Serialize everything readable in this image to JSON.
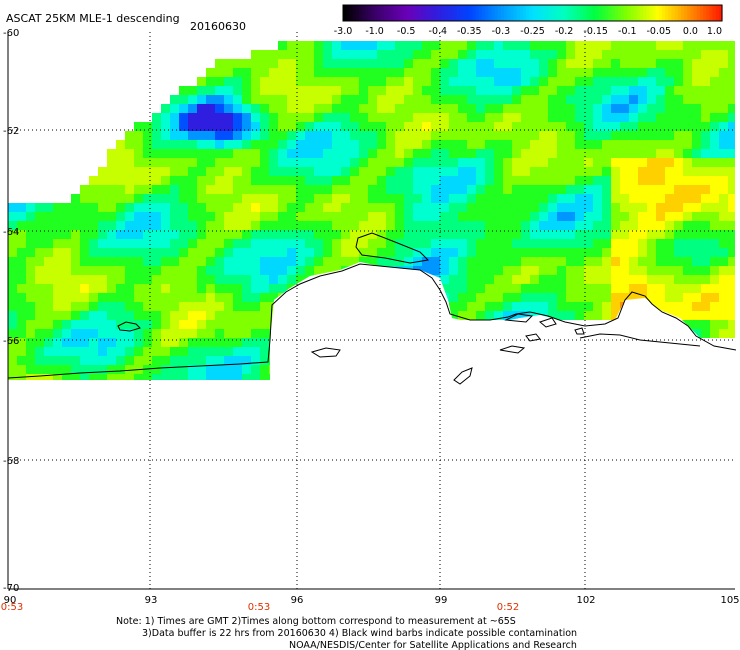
{
  "header": {
    "title": "ASCAT 25KM MLE-1 descending",
    "date": "20160630"
  },
  "colorbar": {
    "labels": [
      "-3.0",
      "-1.0",
      "-0.5",
      "-0.4",
      "-0.35",
      "-0.3",
      "-0.25",
      "-0.2",
      "-0.15",
      "-0.1",
      "-0.05",
      "0.0",
      "1.0"
    ],
    "colors": [
      "#000000",
      "#3b006b",
      "#6a00b8",
      "#2f1ee0",
      "#0044ff",
      "#0096ff",
      "#00e0ff",
      "#00ffc0",
      "#00ff40",
      "#80ff00",
      "#ffff00",
      "#ff9000",
      "#ff1e00"
    ]
  },
  "map": {
    "lat_labels": [
      "-60",
      "-62",
      "-64",
      "-66",
      "-68",
      "-70"
    ],
    "lon_labels": [
      "90",
      "93",
      "96",
      "99",
      "102",
      "105"
    ],
    "time_labels": [
      "0:53",
      "0:53",
      "0:52"
    ],
    "time_color": "#e03000",
    "land_color": "#ffffff",
    "coast_color": "#000000"
  },
  "notes": {
    "line1": "Note: 1) Times are GMT 2)Times along bottom correspond to measurement at ~65S",
    "line2": "3)Data buffer is 22 hrs from 20160630 4) Black wind barbs indicate possible contamination",
    "line3": "NOAA/NESDIS/Center for Satellite Applications and Research"
  }
}
